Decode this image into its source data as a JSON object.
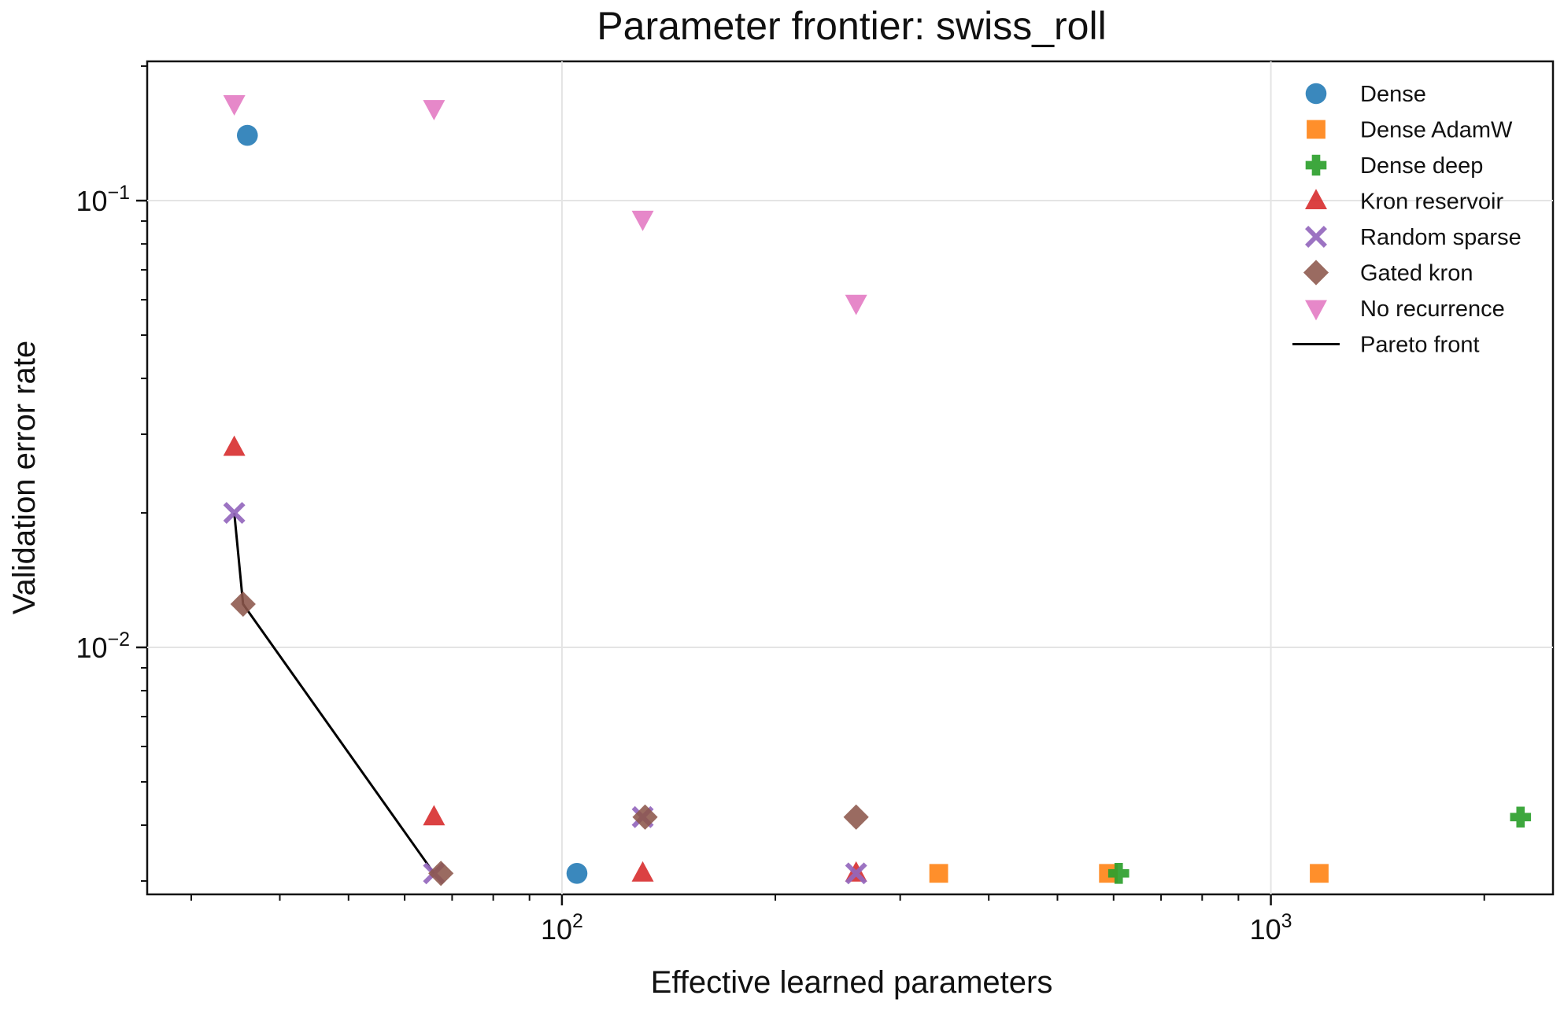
{
  "chart_data": {
    "type": "scatter",
    "title": "Parameter frontier: swiss_roll",
    "xlabel": "Effective learned parameters",
    "ylabel": "Validation error rate",
    "xscale": "log",
    "yscale": "log",
    "xlim": [
      26,
      2500
    ],
    "ylim": [
      0.0028,
      0.205
    ],
    "x_major_ticks": [
      {
        "value": 100,
        "base": "10",
        "exp": "2"
      },
      {
        "value": 1000,
        "base": "10",
        "exp": "3"
      }
    ],
    "y_major_ticks": [
      {
        "value": 0.1,
        "base": "10",
        "exp": "−1"
      },
      {
        "value": 0.01,
        "base": "10",
        "exp": "−2"
      }
    ],
    "x_minor_ticks": [
      30,
      40,
      50,
      60,
      70,
      80,
      90,
      200,
      300,
      400,
      500,
      600,
      700,
      800,
      900,
      2000
    ],
    "y_minor_ticks": [
      0.003,
      0.004,
      0.005,
      0.006,
      0.007,
      0.008,
      0.009,
      0.02,
      0.03,
      0.04,
      0.05,
      0.06,
      0.07,
      0.08,
      0.09,
      0.2
    ],
    "grid": true,
    "legend_position": "top-right",
    "series": [
      {
        "name": "Dense",
        "marker": "circle",
        "color": "#1f77b4",
        "points": [
          [
            36,
            0.14
          ],
          [
            105,
            0.00312
          ]
        ]
      },
      {
        "name": "Dense AdamW",
        "marker": "square",
        "color": "#ff7f0e",
        "points": [
          [
            340,
            0.00312
          ],
          [
            590,
            0.00312
          ],
          [
            1170,
            0.00312
          ]
        ]
      },
      {
        "name": "Dense deep",
        "marker": "plus",
        "color": "#2ca02c",
        "points": [
          [
            610,
            0.00312
          ],
          [
            2250,
            0.00417
          ]
        ]
      },
      {
        "name": "Kron reservoir",
        "marker": "triangle-up",
        "color": "#d62728",
        "points": [
          [
            34.5,
            0.028
          ],
          [
            66,
            0.00417
          ],
          [
            130,
            0.00312
          ],
          [
            260,
            0.00312
          ]
        ]
      },
      {
        "name": "Random sparse",
        "marker": "x",
        "color": "#9467bd",
        "points": [
          [
            34.5,
            0.02
          ],
          [
            66,
            0.00312
          ],
          [
            130,
            0.00417
          ],
          [
            260,
            0.00312
          ]
        ]
      },
      {
        "name": "Gated kron",
        "marker": "diamond",
        "color": "#8c564b",
        "points": [
          [
            35.5,
            0.0125
          ],
          [
            67.5,
            0.00312
          ],
          [
            131,
            0.00417
          ],
          [
            260,
            0.00417
          ]
        ]
      },
      {
        "name": "No recurrence",
        "marker": "triangle-down",
        "color": "#e377c2",
        "points": [
          [
            34.5,
            0.165
          ],
          [
            66,
            0.161
          ],
          [
            130,
            0.091
          ],
          [
            260,
            0.059
          ]
        ]
      }
    ],
    "pareto_front": {
      "name": "Pareto front",
      "color": "#000000",
      "points": [
        [
          34.5,
          0.02
        ],
        [
          35.5,
          0.0125
        ],
        [
          66,
          0.00312
        ]
      ]
    }
  }
}
